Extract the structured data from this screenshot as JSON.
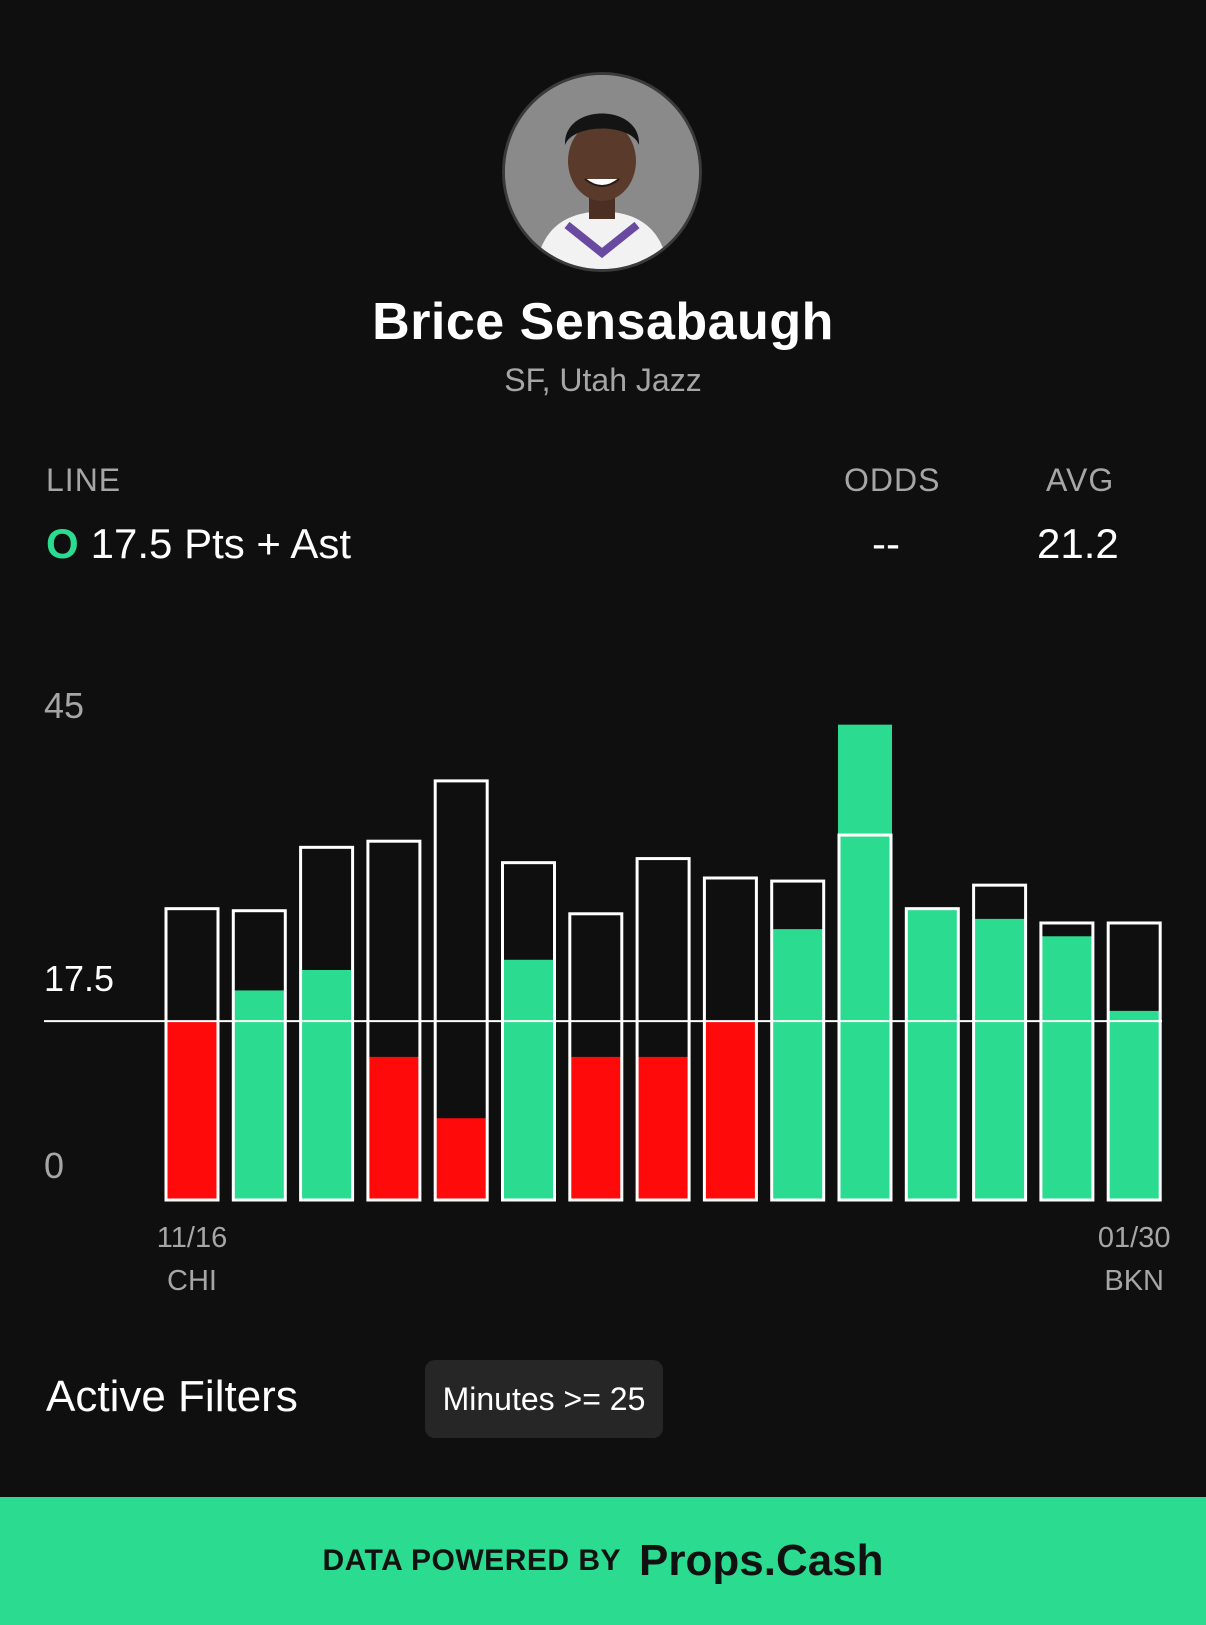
{
  "player": {
    "name": "Brice Sensabaugh",
    "subtitle": "SF, Utah Jazz",
    "avatar_icon": "player-headshot"
  },
  "stats": {
    "line_label": "LINE",
    "line_ou": "O",
    "line_text": "17.5 Pts + Ast",
    "odds_label": "ODDS",
    "odds_value": "--",
    "avg_label": "AVG",
    "avg_value": "21.2"
  },
  "colors": {
    "over": "#2bdb8f",
    "under": "#ff0a0a",
    "background": "#0f0f0f",
    "outline": "#ffffff"
  },
  "chart_data": {
    "type": "bar",
    "ylim": [
      0,
      45
    ],
    "y_ticks": [
      "45",
      "17.5",
      "0"
    ],
    "line": 17.5,
    "line_label": "17.5",
    "bars": [
      {
        "value": 17.5,
        "outline": 28.5
      },
      {
        "value": 20.5,
        "outline": 28.3
      },
      {
        "value": 22.5,
        "outline": 34.5
      },
      {
        "value": 14.0,
        "outline": 35.1
      },
      {
        "value": 8.0,
        "outline": 41.0
      },
      {
        "value": 23.5,
        "outline": 33.0
      },
      {
        "value": 14.0,
        "outline": 28.0
      },
      {
        "value": 14.0,
        "outline": 33.4
      },
      {
        "value": 17.5,
        "outline": 31.5
      },
      {
        "value": 26.5,
        "outline": 31.2
      },
      {
        "value": 46.5,
        "outline": 35.7
      },
      {
        "value": 28.5,
        "outline": 28.5
      },
      {
        "value": 27.5,
        "outline": 30.8
      },
      {
        "value": 25.8,
        "outline": 27.1
      },
      {
        "value": 18.5,
        "outline": 27.1
      }
    ],
    "x_labels": [
      {
        "index": 0,
        "date": "11/16",
        "team": "CHI"
      },
      {
        "index": 14,
        "date": "01/30",
        "team": "BKN"
      }
    ]
  },
  "filters": {
    "title": "Active Filters",
    "chips": [
      "Minutes >= 25"
    ]
  },
  "footer": {
    "prefix": "DATA POWERED BY",
    "brand": "Props.Cash"
  }
}
